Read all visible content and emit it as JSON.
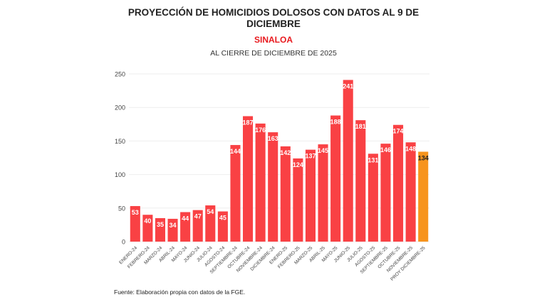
{
  "chart_data": {
    "type": "bar",
    "title": "PROYECCIÓN DE HOMICIDIOS DOLOSOS CON DATOS AL 9 DE DICIEMBRE",
    "subtitle": "SINALOA",
    "subtitle2": "AL CIERRE DE DICIEMBRE DE 2025",
    "source": "Fuente: Elaboración propia con datos de la FGE.",
    "categories": [
      "ENERO-24",
      "FEBRERO-24",
      "MARZO-24",
      "ABRIL-24",
      "MAYO-24",
      "JUNIO-24",
      "JULIO-24",
      "AGOSTO-24",
      "SEPTIEMBRE-24",
      "OCTUBRE-24",
      "NOVIEMBRE-24",
      "DICIEMBRE-24",
      "ENERO-25",
      "FEBRERO-25",
      "MARZO-25",
      "ABRIL-25",
      "MAYO-25",
      "JUNIO-25",
      "JULIO-25",
      "AGOSTO-25",
      "SEPTIEMBRE-25",
      "OCTUBRE-25",
      "NOVIEMBRE-25",
      "PROY DICIEMBRE-25"
    ],
    "values": [
      53,
      40,
      35,
      34,
      44,
      47,
      54,
      45,
      144,
      187,
      176,
      163,
      142,
      124,
      137,
      145,
      188,
      241,
      181,
      131,
      146,
      174,
      148,
      134
    ],
    "ylim": [
      0,
      250
    ],
    "yticks": [
      0,
      50,
      100,
      150,
      200,
      250
    ],
    "grid": true,
    "colors": {
      "bar": "#f94144",
      "projection": "#f7941d"
    }
  }
}
